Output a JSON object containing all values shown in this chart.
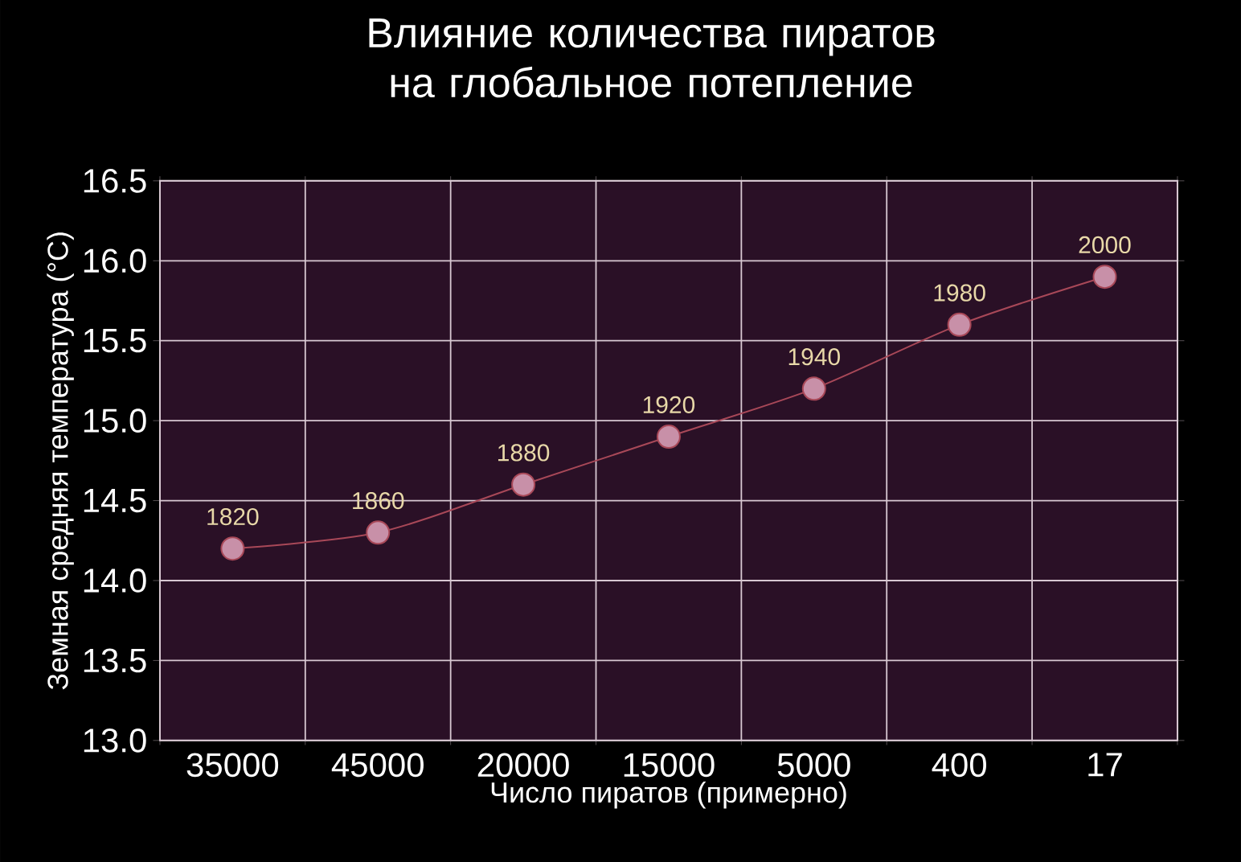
{
  "chart_data": {
    "type": "line",
    "title": "Влияние количества пиратов на глобальное потепление",
    "xlabel": "Число пиратов (примерно)",
    "ylabel": "Земная средняя температура (°C)",
    "categories": [
      "35000",
      "45000",
      "20000",
      "15000",
      "5000",
      "400",
      "17"
    ],
    "series": [
      {
        "color": "#a84858",
        "values": [
          14.2,
          14.3,
          14.6,
          14.9,
          15.2,
          15.6,
          15.9
        ]
      }
    ],
    "annotations": [
      {
        "text": "1820",
        "x": "35000",
        "y": 14.2
      },
      {
        "text": "1860",
        "x": "45000",
        "y": 14.3
      },
      {
        "text": "1880",
        "x": "20000",
        "y": 14.6
      },
      {
        "text": "1920",
        "x": "15000",
        "y": 14.9
      },
      {
        "text": "1940",
        "x": "5000",
        "y": 15.2
      },
      {
        "text": "1980",
        "x": "400",
        "y": 15.6
      },
      {
        "text": "2000",
        "x": "17",
        "y": 15.9
      }
    ],
    "ylim": [
      13.0,
      16.5
    ],
    "yticks": [
      {
        "value": 13.0,
        "label": "13.0"
      },
      {
        "value": 13.5,
        "label": "13.5"
      },
      {
        "value": 14.0,
        "label": "14.0"
      },
      {
        "value": 14.5,
        "label": "14.5"
      },
      {
        "value": 15.0,
        "label": "15.0"
      },
      {
        "value": 15.5,
        "label": "15.5"
      },
      {
        "value": 16.0,
        "label": "16.0"
      },
      {
        "value": 16.5,
        "label": "16.5"
      }
    ],
    "grid": true,
    "marker": "circle",
    "line_style": "solid"
  }
}
